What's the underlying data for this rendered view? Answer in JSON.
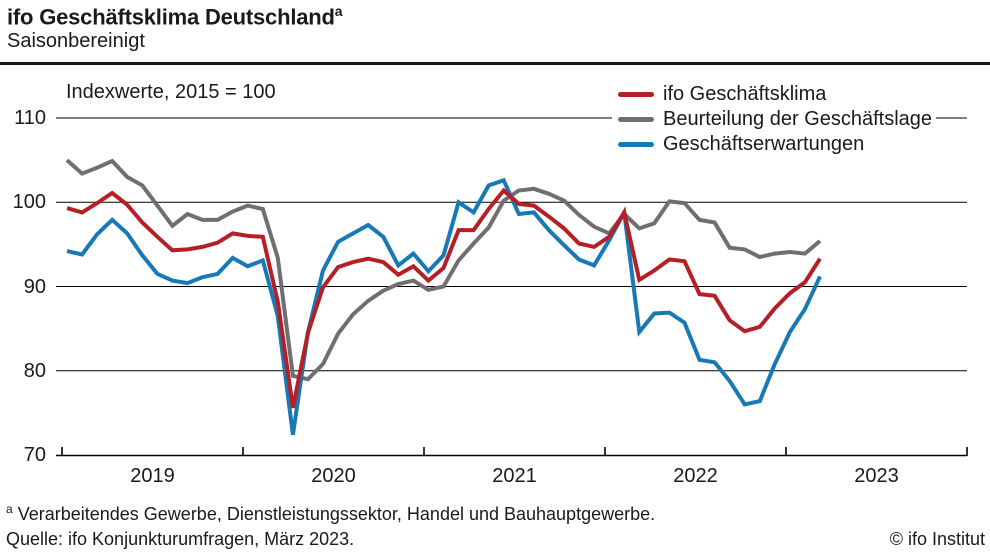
{
  "header": {
    "title": "ifo Geschäftsklima Deutschland",
    "title_superscript": "a",
    "subtitle": "Saisonbereinigt"
  },
  "chart_note": "Indexwerte, 2015 = 100",
  "legend": {
    "items": [
      {
        "label": "ifo Geschäftsklima",
        "color": "#b42025"
      },
      {
        "label": "Beurteilung der Geschäftslage",
        "color": "#6f6f6f"
      },
      {
        "label": "Geschäftserwartungen",
        "color": "#1779b5"
      }
    ]
  },
  "footer": {
    "footnote_superscript": "a",
    "footnote": "Verarbeitendes Gewerbe, Dienstleistungssektor, Handel und Bauhauptgewerbe.",
    "source": "Quelle: ifo Konjunkturumfragen, März 2023.",
    "copyright": "© ifo Institut"
  },
  "chart_data": {
    "type": "line",
    "title": "ifo Geschäftsklima Deutschland, saisonbereinigt",
    "ylabel": "Indexwerte, 2015 = 100",
    "x_start": "2019-01",
    "x_end": "2023-03",
    "frequency": "monthly",
    "x_tick_labels": [
      "2019",
      "2020",
      "2021",
      "2022",
      "2023"
    ],
    "y_ticks": [
      70,
      80,
      90,
      100,
      110
    ],
    "ylim": [
      70,
      110
    ],
    "grid": true,
    "legend_position": "top-right",
    "series": [
      {
        "name": "ifo Geschäftsklima",
        "color": "#b42025",
        "values": [
          99.3,
          98.8,
          99.9,
          101.1,
          99.7,
          97.6,
          95.9,
          94.3,
          94.4,
          94.7,
          95.2,
          96.3,
          96.0,
          95.9,
          88.2,
          75.6,
          84.5,
          89.9,
          92.3,
          92.9,
          93.3,
          92.9,
          91.4,
          92.4,
          90.7,
          92.2,
          96.7,
          96.7,
          99.2,
          101.4,
          99.8,
          99.6,
          98.3,
          96.9,
          95.1,
          94.7,
          95.9,
          98.8,
          90.8,
          91.9,
          93.2,
          93.0,
          89.1,
          88.9,
          86.0,
          84.7,
          85.2,
          87.4,
          89.2,
          90.5,
          93.3
        ]
      },
      {
        "name": "Beurteilung der Geschäftslage",
        "color": "#6f6f6f",
        "values": [
          105.0,
          103.4,
          104.1,
          104.9,
          103.0,
          102.0,
          99.6,
          97.2,
          98.6,
          97.9,
          97.9,
          98.9,
          99.6,
          99.2,
          93.4,
          79.4,
          79.0,
          80.8,
          84.4,
          86.7,
          88.3,
          89.5,
          90.3,
          90.7,
          89.6,
          90.0,
          93.1,
          95.1,
          97.0,
          100.2,
          101.4,
          101.6,
          101.0,
          100.2,
          98.5,
          97.1,
          96.3,
          98.6,
          96.9,
          97.5,
          100.1,
          99.9,
          97.9,
          97.6,
          94.6,
          94.4,
          93.5,
          93.9,
          94.1,
          93.9,
          95.4
        ]
      },
      {
        "name": "Geschäftserwartungen",
        "color": "#1779b5",
        "values": [
          94.2,
          93.8,
          96.2,
          97.9,
          96.3,
          93.7,
          91.5,
          90.7,
          90.4,
          91.1,
          91.5,
          93.4,
          92.4,
          93.1,
          86.5,
          72.4,
          84.6,
          91.9,
          95.3,
          96.3,
          97.3,
          95.9,
          92.5,
          93.9,
          91.8,
          93.7,
          100.0,
          98.8,
          102.0,
          102.6,
          98.6,
          98.8,
          96.7,
          94.9,
          93.2,
          92.5,
          95.5,
          98.8,
          84.6,
          86.8,
          86.9,
          85.7,
          81.3,
          81.0,
          78.8,
          76.0,
          76.4,
          80.8,
          84.6,
          87.3,
          91.2
        ]
      }
    ]
  }
}
